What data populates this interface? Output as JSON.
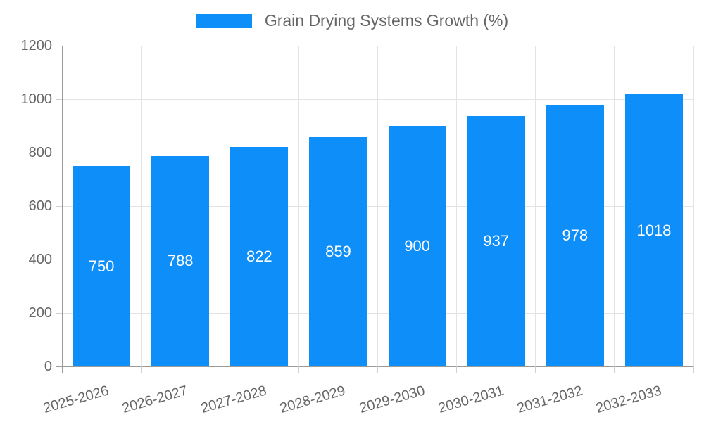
{
  "chart_data": {
    "type": "bar",
    "title": "Grain Drying Systems Growth (%)",
    "categories": [
      "2025-2026",
      "2026-2027",
      "2027-2028",
      "2028-2029",
      "2029-2030",
      "2030-2031",
      "2031-2032",
      "2032-2033"
    ],
    "values": [
      750,
      788,
      822,
      859,
      900,
      937,
      978,
      1018
    ],
    "xlabel": "",
    "ylabel": "",
    "ylim": [
      0,
      1200
    ],
    "yticks": [
      0,
      200,
      400,
      600,
      800,
      1000,
      1200
    ],
    "grid": "on",
    "legend_position": "top-center",
    "value_labels": "inside-center-white",
    "colors": {
      "bar": "#0d8ef8",
      "text": "#666666",
      "gridline": "#e3e3e3",
      "axis": "#9b9b9b",
      "tick": "#cfcfcf",
      "background": "#ffffff"
    }
  }
}
